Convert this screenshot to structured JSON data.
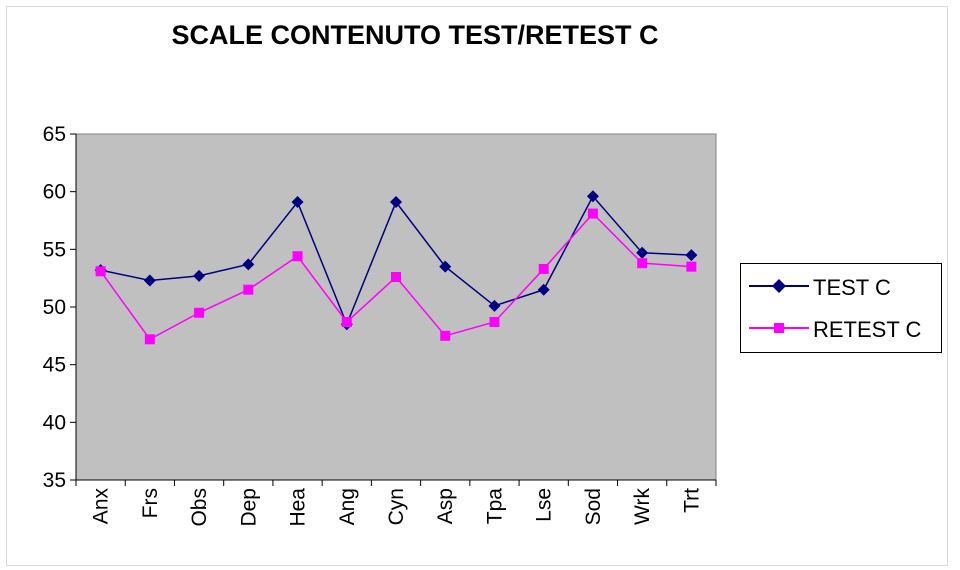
{
  "chart_data": {
    "type": "line",
    "title": "SCALE CONTENUTO TEST/RETEST C",
    "categories": [
      "Anx",
      "Frs",
      "Obs",
      "Dep",
      "Hea",
      "Ang",
      "Cyn",
      "Asp",
      "Tpa",
      "Lse",
      "Sod",
      "Wrk",
      "Trt"
    ],
    "ylim": [
      35,
      65
    ],
    "yticks": [
      35,
      40,
      45,
      50,
      55,
      60,
      65
    ],
    "grid": false,
    "plot_background": "#c0c0c0",
    "legend_position": "right",
    "series": [
      {
        "name": "TEST C",
        "color": "#000080",
        "marker": "diamond",
        "values": [
          53.2,
          52.3,
          52.7,
          53.7,
          59.1,
          48.5,
          59.1,
          53.5,
          50.1,
          51.5,
          59.6,
          54.7,
          54.5
        ]
      },
      {
        "name": "RETEST C",
        "color": "#ff00ff",
        "marker": "square",
        "values": [
          53.1,
          47.2,
          49.5,
          51.5,
          54.4,
          48.7,
          52.6,
          47.5,
          48.7,
          53.3,
          58.1,
          53.8,
          53.5
        ]
      }
    ]
  }
}
